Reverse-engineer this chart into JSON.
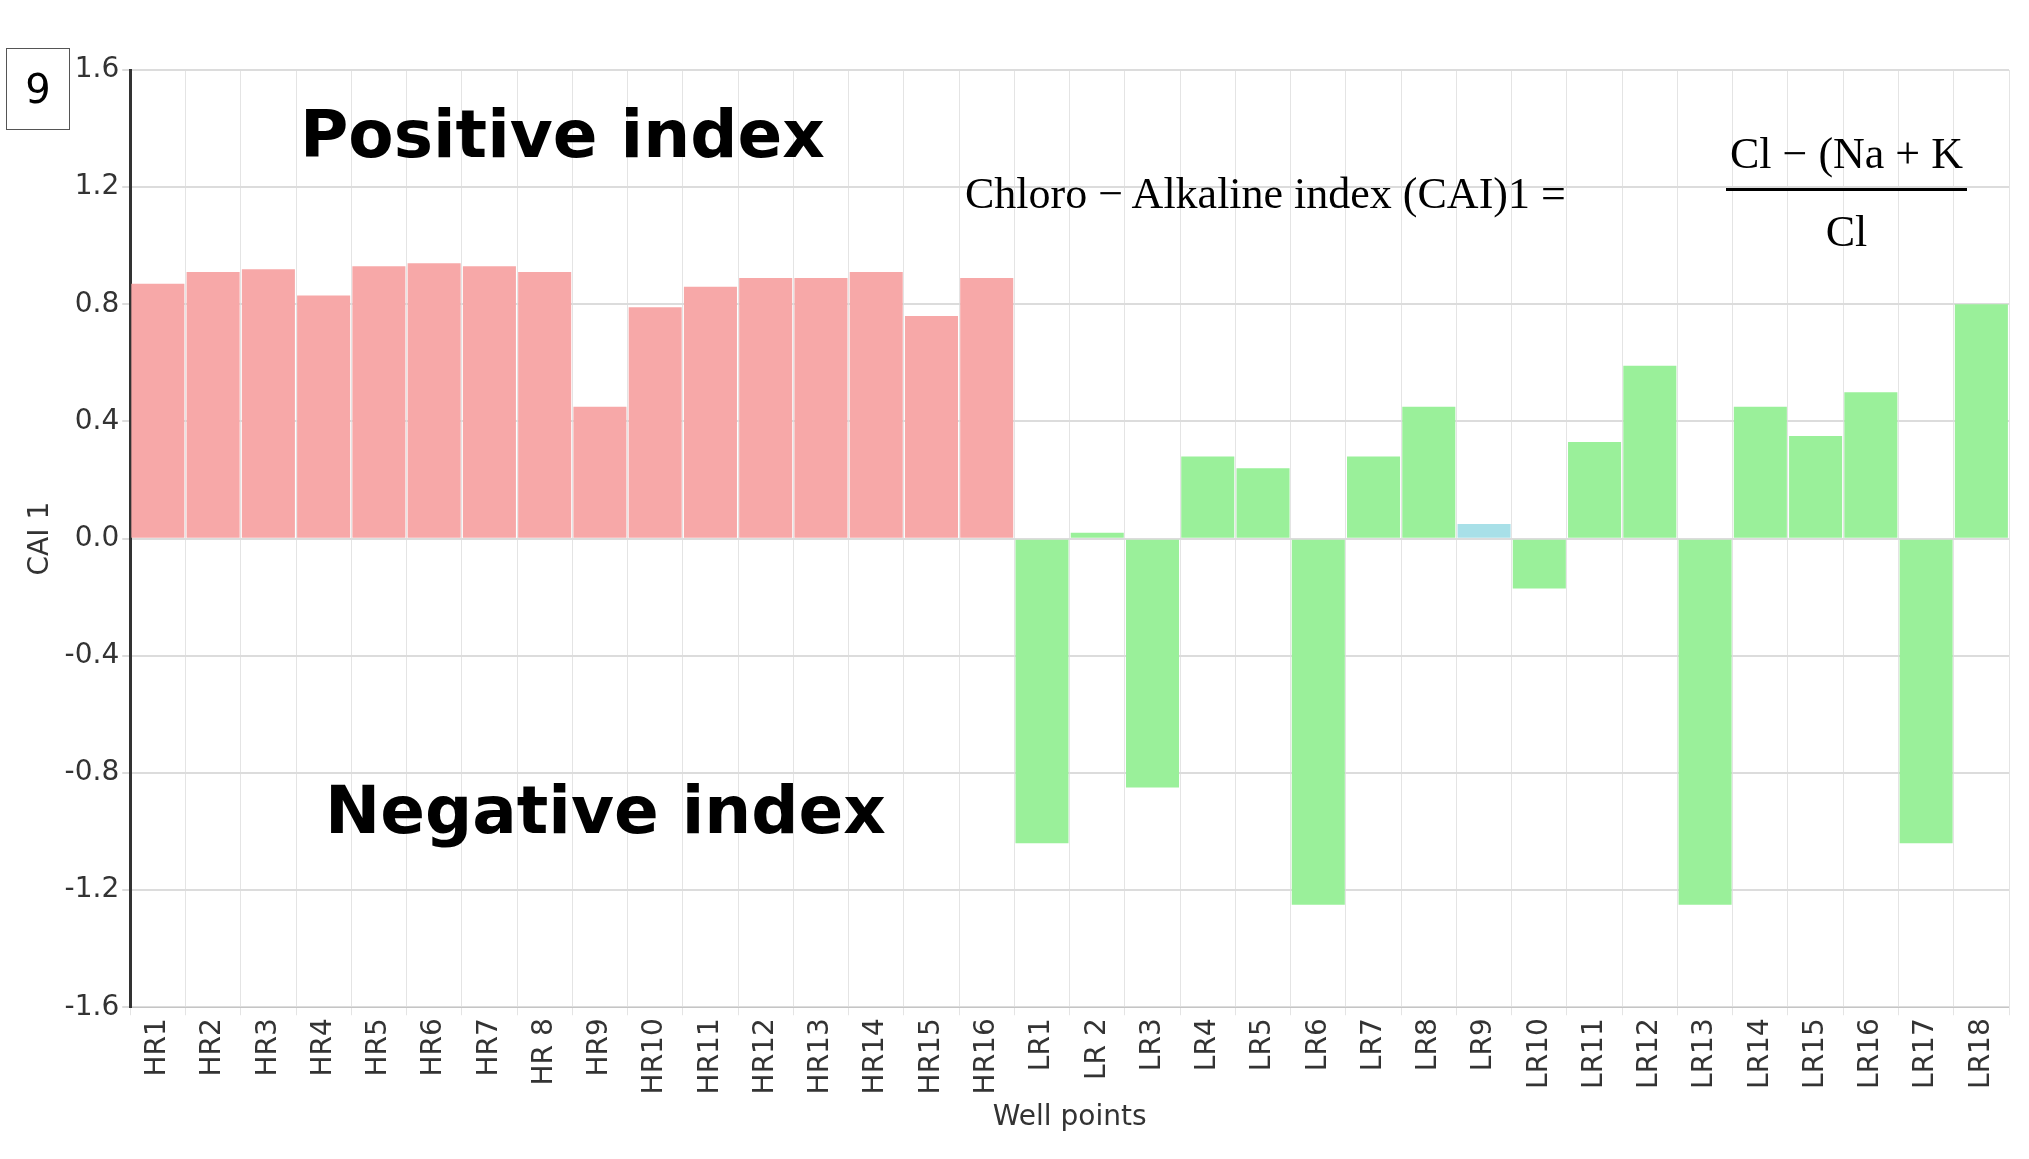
{
  "chart_data": {
    "type": "bar",
    "xlabel": "Well points",
    "ylabel": "CAI 1",
    "categories": [
      "HR1",
      "HR2",
      "HR3",
      "HR4",
      "HR5",
      "HR6",
      "HR7",
      "HR 8",
      "HR9",
      "HR10",
      "HR11",
      "HR12",
      "HR13",
      "HR14",
      "HR15",
      "HR16",
      "LR1",
      "LR 2",
      "LR3",
      "LR4",
      "LR5",
      "LR6",
      "LR7",
      "LR8",
      "LR9",
      "LR10",
      "LR11",
      "LR12",
      "LR13",
      "LR14",
      "LR15",
      "LR16",
      "LR17",
      "LR18"
    ],
    "values": [
      0.87,
      0.91,
      0.92,
      0.83,
      0.93,
      0.94,
      0.93,
      0.91,
      0.45,
      0.79,
      0.86,
      0.89,
      0.89,
      0.91,
      0.76,
      0.89,
      -1.04,
      0.02,
      -0.85,
      0.28,
      0.24,
      -1.25,
      0.28,
      0.45,
      0.05,
      -0.17,
      0.33,
      0.59,
      -1.25,
      0.45,
      0.35,
      0.5,
      -1.04,
      0.8
    ],
    "colors": [
      "#f7a8a8",
      "#f7a8a8",
      "#f7a8a8",
      "#f7a8a8",
      "#f7a8a8",
      "#f7a8a8",
      "#f7a8a8",
      "#f7a8a8",
      "#f7a8a8",
      "#f7a8a8",
      "#f7a8a8",
      "#f7a8a8",
      "#f7a8a8",
      "#f7a8a8",
      "#f7a8a8",
      "#f7a8a8",
      "#9af09a",
      "#9af09a",
      "#9af09a",
      "#9af09a",
      "#9af09a",
      "#9af09a",
      "#9af09a",
      "#9af09a",
      "#a8e0e8",
      "#9af09a",
      "#9af09a",
      "#9af09a",
      "#9af09a",
      "#9af09a",
      "#9af09a",
      "#9af09a",
      "#9af09a",
      "#9af09a"
    ],
    "ylim": [
      -1.6,
      1.6
    ],
    "yticks": [
      -1.6,
      -1.2,
      -0.8,
      -0.4,
      {
        "value": 0,
        "label": "0.0"
      },
      0.4,
      0.8,
      1.2,
      1.6
    ],
    "grid": true,
    "legend": false,
    "annotations": [
      "9",
      "Positive index",
      "Negative index",
      "Chloro − Alkaline index (CAI)1 =",
      "Cl − (Na + K",
      "Cl"
    ]
  }
}
